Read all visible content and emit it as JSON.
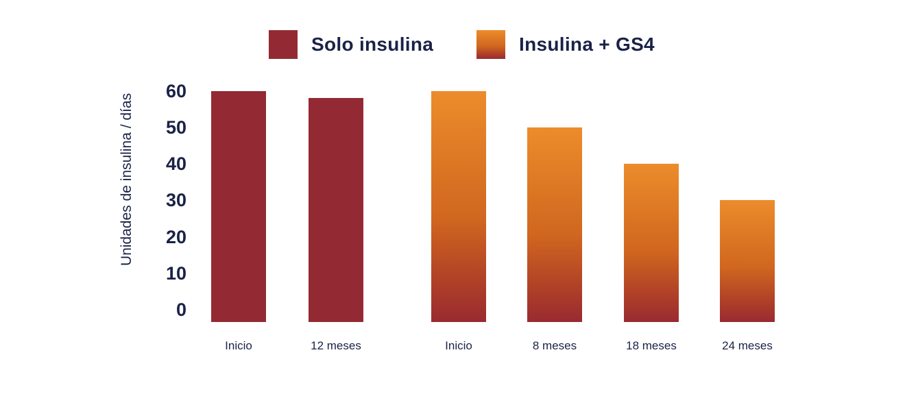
{
  "colors": {
    "text_navy": "#1A2247",
    "solo_insulina": "#932A33",
    "gs4_gradient_top": "#EC8C2B",
    "gs4_gradient_mid": "#D0671F",
    "gs4_gradient_deep": "#B04127",
    "gs4_gradient_bottom": "#992A31"
  },
  "legend": {
    "items": [
      {
        "label": "Solo insulina",
        "key": "solo"
      },
      {
        "label": "Insulina + GS4",
        "key": "gs4"
      }
    ]
  },
  "chart_data": {
    "type": "bar",
    "title": "",
    "xlabel": "",
    "ylabel": "Unidades de insulina / días",
    "ylim": [
      0,
      60
    ],
    "yticks": [
      0,
      10,
      20,
      30,
      40,
      50,
      60
    ],
    "grid": false,
    "legend_position": "top",
    "series": [
      {
        "name": "Solo insulina",
        "key": "solo",
        "color": "#932A33",
        "fill": "solid",
        "points": [
          {
            "x": "Inicio",
            "y": 60
          },
          {
            "x": "12 meses",
            "y": 58
          }
        ]
      },
      {
        "name": "Insulina + GS4",
        "key": "gs4",
        "color": "#EC8C2B",
        "fill": "vertical gradient orange to dark red",
        "points": [
          {
            "x": "Inicio",
            "y": 60
          },
          {
            "x": "8 meses",
            "y": 50
          },
          {
            "x": "18 meses",
            "y": 40
          },
          {
            "x": "24 meses",
            "y": 30
          }
        ]
      }
    ]
  }
}
